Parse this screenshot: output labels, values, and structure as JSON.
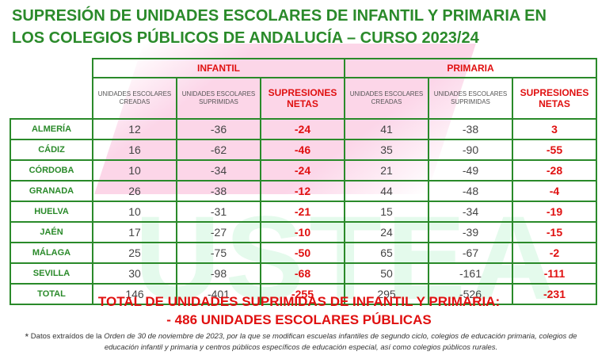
{
  "title": {
    "line1": "SUPRESIÓN DE UNIDADES ESCOLARES DE INFANTIL Y PRIMARIA EN",
    "line2": "LOS COLEGIOS PÚBLICOS DE ANDALUCÍA – CURSO 2023/24"
  },
  "watermark": "USTEA",
  "table": {
    "groups": [
      "INFANTIL",
      "PRIMARIA"
    ],
    "subheaders": {
      "creadas": "UNIDADES ESCOLARES CREADAS",
      "suprimidas": "UNIDADES ESCOLARES SUPRIMIDAS",
      "netas": "SUPRESIONES NETAS"
    },
    "rows": [
      {
        "province": "ALMERÍA",
        "inf_creadas": "12",
        "inf_suprimidas": "-36",
        "inf_netas": "-24",
        "pri_creadas": "41",
        "pri_suprimidas": "-38",
        "pri_netas": "3"
      },
      {
        "province": "CÁDIZ",
        "inf_creadas": "16",
        "inf_suprimidas": "-62",
        "inf_netas": "-46",
        "pri_creadas": "35",
        "pri_suprimidas": "-90",
        "pri_netas": "-55"
      },
      {
        "province": "CÓRDOBA",
        "inf_creadas": "10",
        "inf_suprimidas": "-34",
        "inf_netas": "-24",
        "pri_creadas": "21",
        "pri_suprimidas": "-49",
        "pri_netas": "-28"
      },
      {
        "province": "GRANADA",
        "inf_creadas": "26",
        "inf_suprimidas": "-38",
        "inf_netas": "-12",
        "pri_creadas": "44",
        "pri_suprimidas": "-48",
        "pri_netas": "-4"
      },
      {
        "province": "HUELVA",
        "inf_creadas": "10",
        "inf_suprimidas": "-31",
        "inf_netas": "-21",
        "pri_creadas": "15",
        "pri_suprimidas": "-34",
        "pri_netas": "-19"
      },
      {
        "province": "JAÉN",
        "inf_creadas": "17",
        "inf_suprimidas": "-27",
        "inf_netas": "-10",
        "pri_creadas": "24",
        "pri_suprimidas": "-39",
        "pri_netas": "-15"
      },
      {
        "province": "MÁLAGA",
        "inf_creadas": "25",
        "inf_suprimidas": "-75",
        "inf_netas": "-50",
        "pri_creadas": "65",
        "pri_suprimidas": "-67",
        "pri_netas": "-2"
      },
      {
        "province": "SEVILLA",
        "inf_creadas": "30",
        "inf_suprimidas": "-98",
        "inf_netas": "-68",
        "pri_creadas": "50",
        "pri_suprimidas": "-161",
        "pri_netas": "-111"
      },
      {
        "province": "TOTAL",
        "inf_creadas": "146",
        "inf_suprimidas": "-401",
        "inf_netas": "-255",
        "pri_creadas": "295",
        "pri_suprimidas": "-526",
        "pri_netas": "-231"
      }
    ]
  },
  "summary": {
    "line1": "TOTAL DE UNIDADES SUPRIMIDAS DE INFANTIL Y PRIMARIA:",
    "line2": "- 486 UNIDADES ESCOLARES PÚBLICAS"
  },
  "footnote": {
    "asterisk": "*",
    "prefix": "Datos extraídos de la",
    "text": "Orden de 30 de noviembre de 2023, por la que se modifican escuelas infantiles de segundo ciclo, colegios de educación primaria, colegios de educación infantil y primaria y centros públicos específicos de educación especial, así como colegios públicos rurales."
  }
}
